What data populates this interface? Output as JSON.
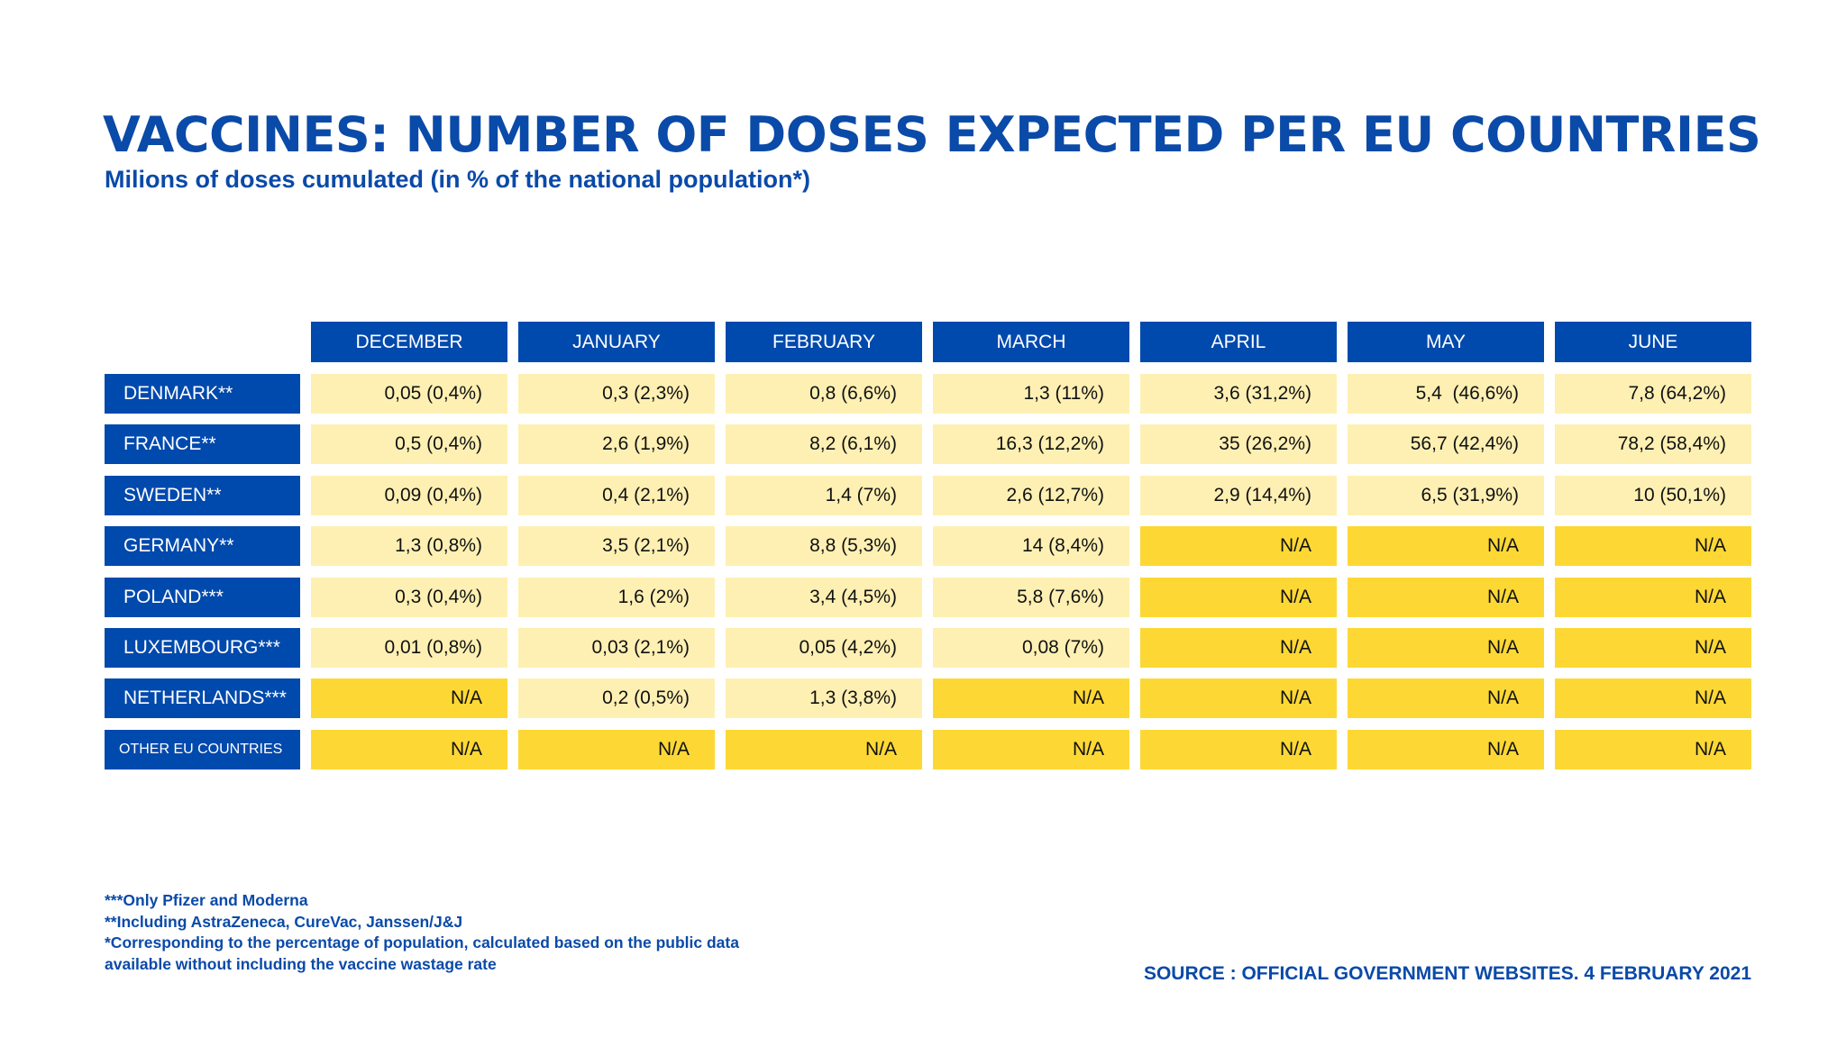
{
  "title": "VACCINES: NUMBER OF DOSES EXPECTED PER EU COUNTRIES",
  "subtitle": "Milions of doses cumulated (in % of the national population*)",
  "colors": {
    "header_blue": "#0049ad",
    "available": "#fef0b3",
    "not_available": "#fdd835",
    "text_blue": "#0a4aa8"
  },
  "table": {
    "columns": [
      "DECEMBER",
      "JANUARY",
      "FEBRUARY",
      "MARCH",
      "APRIL",
      "MAY",
      "JUNE"
    ],
    "rows": [
      {
        "country": "DENMARK**",
        "values": [
          "0,05 (0,4%)",
          "0,3 (2,3%)",
          "0,8 (6,6%)",
          "1,3 (11%)",
          "3,6 (31,2%)",
          "5,4  (46,6%)",
          "7,8 (64,2%)"
        ]
      },
      {
        "country": "FRANCE**",
        "values": [
          "0,5 (0,4%)",
          "2,6 (1,9%)",
          "8,2 (6,1%)",
          "16,3 (12,2%)",
          "35 (26,2%)",
          "56,7 (42,4%)",
          "78,2 (58,4%)"
        ]
      },
      {
        "country": "SWEDEN**",
        "values": [
          "0,09 (0,4%)",
          "0,4 (2,1%)",
          "1,4 (7%)",
          "2,6 (12,7%)",
          "2,9 (14,4%)",
          "6,5 (31,9%)",
          "10 (50,1%)"
        ]
      },
      {
        "country": "GERMANY**",
        "values": [
          "1,3 (0,8%)",
          "3,5 (2,1%)",
          "8,8 (5,3%)",
          "14 (8,4%)",
          "N/A",
          "N/A",
          "N/A"
        ]
      },
      {
        "country": "POLAND***",
        "values": [
          "0,3 (0,4%)",
          "1,6 (2%)",
          "3,4 (4,5%)",
          "5,8 (7,6%)",
          "N/A",
          "N/A",
          "N/A"
        ]
      },
      {
        "country": "LUXEMBOURG***",
        "values": [
          "0,01 (0,8%)",
          "0,03 (2,1%)",
          "0,05 (4,2%)",
          "0,08 (7%)",
          "N/A",
          "N/A",
          "N/A"
        ]
      },
      {
        "country": "NETHERLANDS***",
        "values": [
          "N/A",
          "0,2 (0,5%)",
          "1,3 (3,8%)",
          "N/A",
          "N/A",
          "N/A",
          "N/A"
        ]
      },
      {
        "country": "OTHER EU COUNTRIES",
        "values": [
          "N/A",
          "N/A",
          "N/A",
          "N/A",
          "N/A",
          "N/A",
          "N/A"
        ]
      }
    ]
  },
  "footnotes": [
    "***Only Pfizer and Moderna",
    "**Including AstraZeneca, CureVac, Janssen/J&J",
    "*Corresponding to the percentage of population, calculated based on the public data",
    "available without including the vaccine wastage rate"
  ],
  "source": "SOURCE : OFFICIAL GOVERNMENT WEBSITES. 4 FEBRUARY 2021"
}
